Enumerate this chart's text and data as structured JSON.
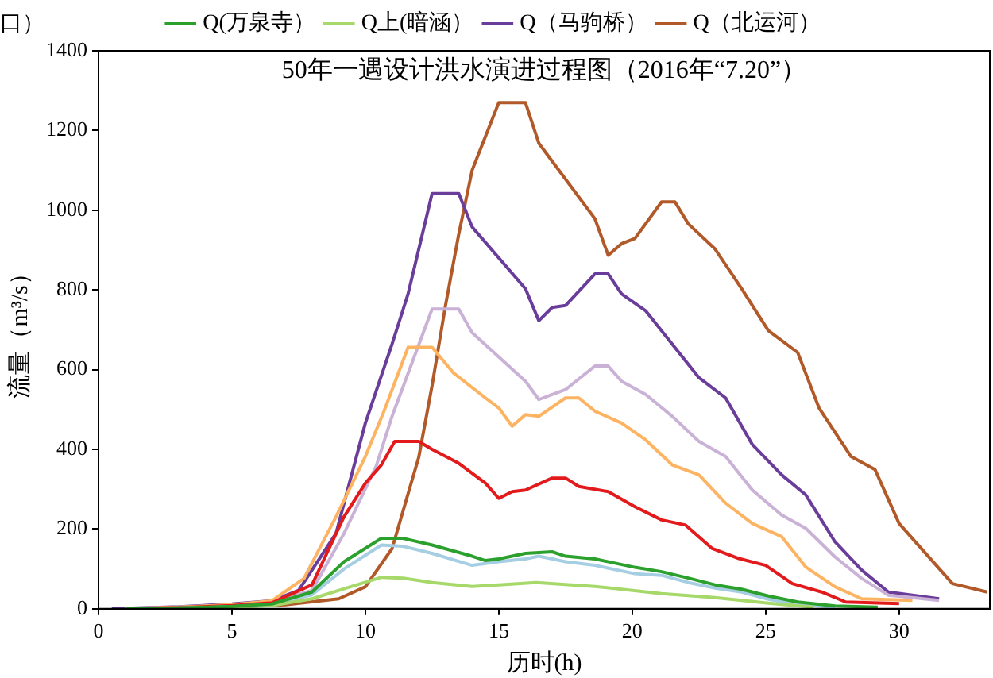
{
  "chart_data": {
    "type": "line",
    "title": "50年一遇设计洪水演进过程图（2016年“7.20”）",
    "xlabel": "历时(h)",
    "ylabel": "流量（m³/s）",
    "annotations": [
      "口）"
    ],
    "xlim": [
      0,
      33.4
    ],
    "ylim": [
      0,
      1400
    ],
    "xticks": [
      0,
      5,
      10,
      15,
      20,
      25,
      30
    ],
    "yticks": [
      0,
      200,
      400,
      600,
      800,
      1000,
      1200,
      1400
    ],
    "grid": false,
    "legend": "top",
    "marker": "none",
    "line_style": "solid",
    "series": [
      {
        "name": "Q(万泉寺）",
        "color": "#2ca02c",
        "x": [
          1,
          3,
          5,
          6.5,
          8,
          9.2,
          10.6,
          11.4,
          12.5,
          14,
          14.5,
          15,
          16,
          17,
          17.5,
          18.6,
          20.1,
          21.1,
          22.1,
          23.1,
          24.1,
          25.1,
          26.2,
          27.6,
          29.2
        ],
        "values": [
          0,
          2,
          6,
          12,
          42,
          118,
          177,
          177,
          160,
          132,
          121,
          125,
          139,
          143,
          132,
          125,
          104,
          93,
          77,
          60,
          49,
          32,
          17,
          7,
          4
        ]
      },
      {
        "name": "Q上(暗涵）",
        "color": "#a6d96a",
        "x": [
          1,
          3,
          5,
          6.5,
          8,
          9.2,
          10.6,
          11.4,
          12.5,
          14,
          15,
          16.4,
          18.6,
          21.1,
          23.1,
          25.1,
          26.8
        ],
        "values": [
          0,
          1,
          4,
          8,
          25,
          50,
          79,
          77,
          66,
          56,
          60,
          66,
          56,
          38,
          28,
          14,
          4
        ]
      },
      {
        "name": null,
        "color": "#a6cee3",
        "x": [
          1,
          3,
          5,
          6.5,
          8,
          9.2,
          10.6,
          11.4,
          12.5,
          14,
          15,
          16,
          16.5,
          17.5,
          18.6,
          20.1,
          21.1,
          22.1,
          23.1,
          24.1,
          25.1,
          26.2,
          27.6
        ],
        "values": [
          0,
          2,
          5,
          10,
          35,
          100,
          160,
          157,
          139,
          109,
          118,
          125,
          132,
          118,
          109,
          88,
          84,
          66,
          52,
          42,
          24,
          10,
          4
        ]
      },
      {
        "name": null,
        "color": "#e31a1c",
        "x": [
          1,
          3,
          5,
          6.5,
          8,
          9.2,
          10,
          10.6,
          11.1,
          12,
          12.5,
          13.5,
          14.5,
          15,
          15.5,
          16,
          17,
          17.5,
          18,
          19.1,
          20.1,
          21.1,
          22,
          23,
          24,
          25,
          26,
          27.1,
          28,
          30
        ],
        "values": [
          0,
          3,
          8,
          15,
          60,
          231,
          315,
          361,
          420,
          420,
          400,
          365,
          315,
          277,
          294,
          298,
          328,
          328,
          307,
          294,
          256,
          223,
          210,
          151,
          126,
          109,
          63,
          42,
          17,
          13
        ]
      },
      {
        "name": null,
        "color": "#fdb462",
        "x": [
          1,
          3,
          5,
          6.5,
          7.7,
          8.9,
          10,
          10.7,
          11.6,
          12.5,
          13.3,
          14.5,
          15,
          15.5,
          16,
          16.5,
          17.5,
          18,
          18.6,
          19.6,
          20.5,
          21.5,
          22.5,
          23.5,
          24.5,
          25.6,
          26.5,
          27.6,
          28.6,
          30.5
        ],
        "values": [
          0,
          4,
          10,
          20,
          76,
          231,
          382,
          496,
          656,
          656,
          592,
          529,
          504,
          458,
          487,
          483,
          529,
          529,
          496,
          466,
          424,
          361,
          336,
          265,
          214,
          181,
          105,
          55,
          25,
          21
        ]
      },
      {
        "name": null,
        "color": "#cab2d6",
        "x": [
          1,
          3,
          5,
          6.5,
          8,
          9.2,
          10.4,
          11,
          12.5,
          13.5,
          14,
          16,
          16.5,
          17.5,
          18.6,
          19.1,
          19.6,
          20.5,
          21.5,
          22.5,
          23.5,
          24.5,
          25.6,
          26.5,
          27.6,
          28.6,
          29.6,
          31.5
        ],
        "values": [
          0,
          4,
          10,
          18,
          46,
          189,
          357,
          483,
          752,
          752,
          693,
          571,
          525,
          550,
          609,
          609,
          571,
          538,
          483,
          420,
          382,
          298,
          235,
          202,
          130,
          76,
          34,
          21
        ]
      },
      {
        "name": "Q（马驹桥）",
        "color": "#6a3d9a",
        "x": [
          0.5,
          3,
          5,
          6.5,
          7.5,
          8.9,
          10,
          11,
          11.6,
          12.5,
          13.5,
          14,
          16,
          16.5,
          17,
          17.5,
          18.6,
          19.1,
          19.6,
          20.5,
          21.5,
          22.5,
          23.5,
          24.5,
          25.6,
          26.5,
          27.6,
          28.6,
          29.6,
          31.5
        ],
        "values": [
          0,
          5,
          12,
          20,
          46,
          189,
          466,
          664,
          790,
          1042,
          1042,
          958,
          803,
          723,
          756,
          761,
          840,
          840,
          790,
          748,
          664,
          580,
          529,
          412,
          336,
          286,
          168,
          97,
          42,
          25
        ]
      },
      {
        "name": "Q（北运河）",
        "color": "#b15928",
        "x": [
          1,
          5,
          7,
          9,
          10,
          11,
          12,
          12.5,
          13,
          13.5,
          14,
          15,
          16,
          16.5,
          18.6,
          19.1,
          19.6,
          20.1,
          21.1,
          21.6,
          22.1,
          23.1,
          24.1,
          25.1,
          26.2,
          27,
          28.2,
          29.1,
          30,
          32,
          33.3
        ],
        "values": [
          0,
          5,
          10,
          25,
          55,
          151,
          380,
          560,
          760,
          940,
          1100,
          1270,
          1270,
          1168,
          979,
          887,
          916,
          929,
          1021,
          1021,
          966,
          903,
          803,
          698,
          643,
          504,
          382,
          349,
          214,
          63,
          42
        ]
      }
    ]
  }
}
